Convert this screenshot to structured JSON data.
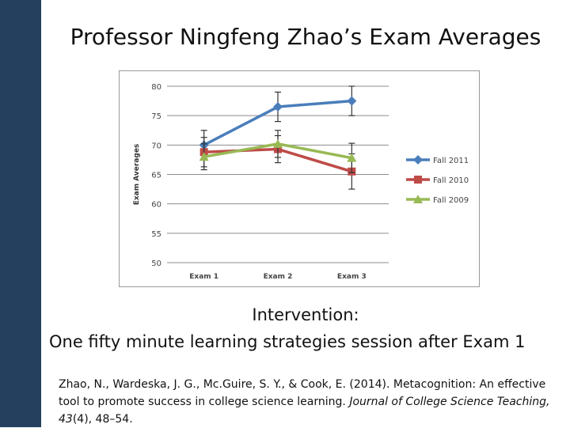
{
  "slide": {
    "title": "Professor Ningfeng Zhao’s Exam Averages",
    "intervention_label": "Intervention:",
    "intervention_text": "One fifty minute learning strategies session after Exam 1",
    "citation": {
      "authors": "Zhao, N., Wardeska, J. G., Mc.Guire, S. Y., & Cook, E. (2014). Metacognition: An effective tool to promote success in college science learning.",
      "journal": "Journal of College Science Teaching, 43",
      "issue": "(4), 48–54."
    }
  },
  "chart_data": {
    "type": "line",
    "title": "",
    "xlabel": "",
    "ylabel": "Exam Averages",
    "categories": [
      "Exam 1",
      "Exam 2",
      "Exam 3"
    ],
    "ylim": [
      50,
      80
    ],
    "yticks": [
      50,
      55,
      60,
      65,
      70,
      75,
      80
    ],
    "grid": true,
    "legend": "right",
    "series": [
      {
        "name": "Fall 2011",
        "values": [
          70.0,
          76.5,
          77.5
        ],
        "error": [
          2.5,
          2.5,
          2.5
        ],
        "color": "#4a7ebb",
        "marker": "diamond"
      },
      {
        "name": "Fall 2010",
        "values": [
          68.8,
          69.3,
          65.5
        ],
        "error": [
          2.5,
          2.3,
          3.0
        ],
        "color": "#be4b48",
        "marker": "square"
      },
      {
        "name": "Fall 2009",
        "values": [
          68.0,
          70.2,
          67.8
        ],
        "error": [
          2.2,
          2.3,
          2.5
        ],
        "color": "#98b954",
        "marker": "triangle"
      }
    ]
  }
}
